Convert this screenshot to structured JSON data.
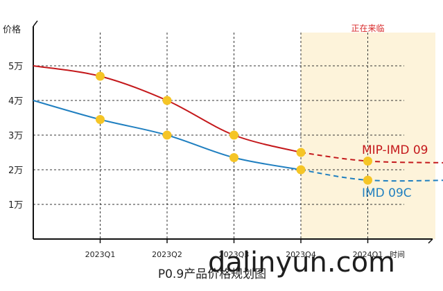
{
  "chart_data": {
    "type": "line",
    "title": "P0.9产品价格规划图",
    "ylabel": "价格",
    "xlabel": "时间",
    "categories": [
      "",
      "2023Q1",
      "2023Q2",
      "2023Q3",
      "2023Q4",
      "2024Q1",
      ""
    ],
    "y_ticks": [
      {
        "value": 1,
        "label": "1万"
      },
      {
        "value": 2,
        "label": "2万"
      },
      {
        "value": 3,
        "label": "3万"
      },
      {
        "value": 4,
        "label": "4万"
      },
      {
        "value": 5,
        "label": "5万"
      }
    ],
    "ylim": [
      0,
      6
    ],
    "grid": true,
    "forecast_region": {
      "from": "2023Q4",
      "label": "正在来临"
    },
    "series": [
      {
        "name": "MIP-IMD 09",
        "color": "#c4181b",
        "x": [
          0,
          1,
          2,
          3,
          4,
          5,
          6.3
        ],
        "values": [
          5.0,
          4.7,
          4.0,
          3.0,
          2.5,
          2.25,
          2.2
        ],
        "markers": [
          1,
          2,
          3,
          4,
          5
        ],
        "dashed_from": 4
      },
      {
        "name": "IMD 09C",
        "color": "#1f7fc0",
        "x": [
          0,
          1,
          2,
          3,
          4,
          5,
          6.3
        ],
        "values": [
          4.0,
          3.45,
          3.0,
          2.35,
          2.0,
          1.7,
          1.7
        ],
        "markers": [
          1,
          2,
          3,
          4,
          5
        ],
        "dashed_from": 4
      }
    ],
    "marker_color": "#f5c526",
    "highlight_color": "#d82828"
  },
  "watermark": "dalinyun.com"
}
